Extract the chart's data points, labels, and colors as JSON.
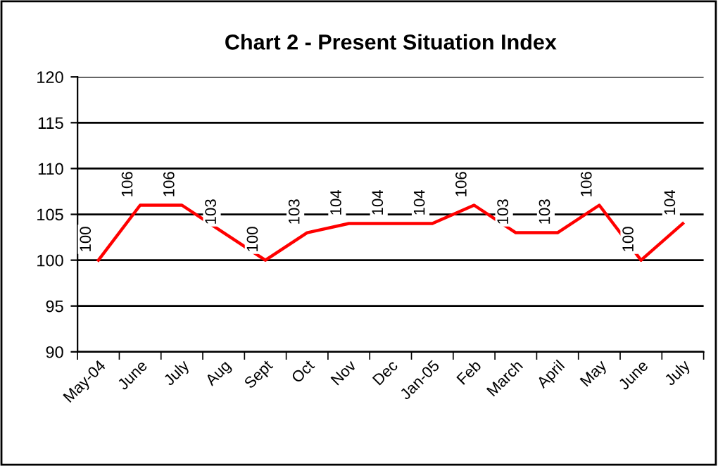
{
  "chart_data": {
    "type": "line",
    "title": "Chart 2 - Present Situation Index",
    "categories": [
      "May-04",
      "June",
      "July",
      "Aug",
      "Sept",
      "Oct",
      "Nov",
      "Dec",
      "Jan-05",
      "Feb",
      "March",
      "April",
      "May",
      "June",
      "July"
    ],
    "series": [
      {
        "color": "#ff0000",
        "values": [
          100,
          106,
          106,
          103,
          100,
          103,
          104,
          104,
          104,
          106,
          103,
          103,
          106,
          100,
          104
        ]
      }
    ],
    "ylim": [
      90,
      120
    ],
    "yticks": [
      90,
      95,
      100,
      105,
      110,
      115,
      120
    ],
    "grid": "y",
    "data_labels": true,
    "marker": "none",
    "line_style": "solid"
  }
}
